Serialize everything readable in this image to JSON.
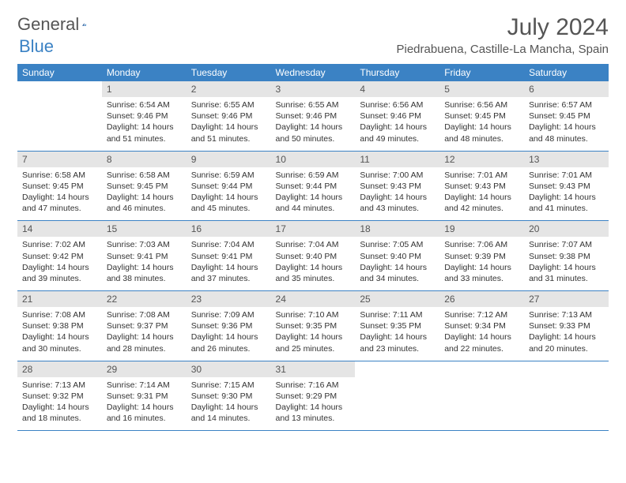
{
  "logo": {
    "text1": "General",
    "text2": "Blue"
  },
  "title": "July 2024",
  "location": "Piedrabuena, Castille-La Mancha, Spain",
  "colors": {
    "accent": "#3b82c4",
    "header_text": "#555555",
    "daynum_bg": "#e5e5e5"
  },
  "weekdays": [
    "Sunday",
    "Monday",
    "Tuesday",
    "Wednesday",
    "Thursday",
    "Friday",
    "Saturday"
  ],
  "weeks": [
    [
      null,
      {
        "n": "1",
        "sr": "6:54 AM",
        "ss": "9:46 PM",
        "dl": "14 hours and 51 minutes."
      },
      {
        "n": "2",
        "sr": "6:55 AM",
        "ss": "9:46 PM",
        "dl": "14 hours and 51 minutes."
      },
      {
        "n": "3",
        "sr": "6:55 AM",
        "ss": "9:46 PM",
        "dl": "14 hours and 50 minutes."
      },
      {
        "n": "4",
        "sr": "6:56 AM",
        "ss": "9:46 PM",
        "dl": "14 hours and 49 minutes."
      },
      {
        "n": "5",
        "sr": "6:56 AM",
        "ss": "9:45 PM",
        "dl": "14 hours and 48 minutes."
      },
      {
        "n": "6",
        "sr": "6:57 AM",
        "ss": "9:45 PM",
        "dl": "14 hours and 48 minutes."
      }
    ],
    [
      {
        "n": "7",
        "sr": "6:58 AM",
        "ss": "9:45 PM",
        "dl": "14 hours and 47 minutes."
      },
      {
        "n": "8",
        "sr": "6:58 AM",
        "ss": "9:45 PM",
        "dl": "14 hours and 46 minutes."
      },
      {
        "n": "9",
        "sr": "6:59 AM",
        "ss": "9:44 PM",
        "dl": "14 hours and 45 minutes."
      },
      {
        "n": "10",
        "sr": "6:59 AM",
        "ss": "9:44 PM",
        "dl": "14 hours and 44 minutes."
      },
      {
        "n": "11",
        "sr": "7:00 AM",
        "ss": "9:43 PM",
        "dl": "14 hours and 43 minutes."
      },
      {
        "n": "12",
        "sr": "7:01 AM",
        "ss": "9:43 PM",
        "dl": "14 hours and 42 minutes."
      },
      {
        "n": "13",
        "sr": "7:01 AM",
        "ss": "9:43 PM",
        "dl": "14 hours and 41 minutes."
      }
    ],
    [
      {
        "n": "14",
        "sr": "7:02 AM",
        "ss": "9:42 PM",
        "dl": "14 hours and 39 minutes."
      },
      {
        "n": "15",
        "sr": "7:03 AM",
        "ss": "9:41 PM",
        "dl": "14 hours and 38 minutes."
      },
      {
        "n": "16",
        "sr": "7:04 AM",
        "ss": "9:41 PM",
        "dl": "14 hours and 37 minutes."
      },
      {
        "n": "17",
        "sr": "7:04 AM",
        "ss": "9:40 PM",
        "dl": "14 hours and 35 minutes."
      },
      {
        "n": "18",
        "sr": "7:05 AM",
        "ss": "9:40 PM",
        "dl": "14 hours and 34 minutes."
      },
      {
        "n": "19",
        "sr": "7:06 AM",
        "ss": "9:39 PM",
        "dl": "14 hours and 33 minutes."
      },
      {
        "n": "20",
        "sr": "7:07 AM",
        "ss": "9:38 PM",
        "dl": "14 hours and 31 minutes."
      }
    ],
    [
      {
        "n": "21",
        "sr": "7:08 AM",
        "ss": "9:38 PM",
        "dl": "14 hours and 30 minutes."
      },
      {
        "n": "22",
        "sr": "7:08 AM",
        "ss": "9:37 PM",
        "dl": "14 hours and 28 minutes."
      },
      {
        "n": "23",
        "sr": "7:09 AM",
        "ss": "9:36 PM",
        "dl": "14 hours and 26 minutes."
      },
      {
        "n": "24",
        "sr": "7:10 AM",
        "ss": "9:35 PM",
        "dl": "14 hours and 25 minutes."
      },
      {
        "n": "25",
        "sr": "7:11 AM",
        "ss": "9:35 PM",
        "dl": "14 hours and 23 minutes."
      },
      {
        "n": "26",
        "sr": "7:12 AM",
        "ss": "9:34 PM",
        "dl": "14 hours and 22 minutes."
      },
      {
        "n": "27",
        "sr": "7:13 AM",
        "ss": "9:33 PM",
        "dl": "14 hours and 20 minutes."
      }
    ],
    [
      {
        "n": "28",
        "sr": "7:13 AM",
        "ss": "9:32 PM",
        "dl": "14 hours and 18 minutes."
      },
      {
        "n": "29",
        "sr": "7:14 AM",
        "ss": "9:31 PM",
        "dl": "14 hours and 16 minutes."
      },
      {
        "n": "30",
        "sr": "7:15 AM",
        "ss": "9:30 PM",
        "dl": "14 hours and 14 minutes."
      },
      {
        "n": "31",
        "sr": "7:16 AM",
        "ss": "9:29 PM",
        "dl": "14 hours and 13 minutes."
      },
      null,
      null,
      null
    ]
  ],
  "labels": {
    "sunrise": "Sunrise: ",
    "sunset": "Sunset: ",
    "daylight": "Daylight: "
  }
}
